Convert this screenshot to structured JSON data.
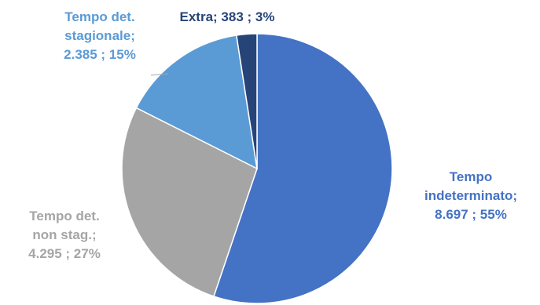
{
  "chart_data": {
    "type": "pie",
    "title": "",
    "slices": [
      {
        "lines": [
          "Tempo",
          "indeterminato;",
          "8.697 ; 55%"
        ],
        "value": 8697,
        "percent": 55,
        "color": "#4472C4"
      },
      {
        "lines": [
          "Tempo det.",
          "non stag.;",
          "4.295 ; 27%"
        ],
        "value": 4295,
        "percent": 27,
        "color": "#A5A5A5"
      },
      {
        "lines": [
          "Tempo  det.",
          "stagionale;",
          "2.385 ; 15%"
        ],
        "value": 2385,
        "percent": 15,
        "color": "#5B9BD5"
      },
      {
        "lines": [
          "Extra;  383 ; 3%"
        ],
        "value": 383,
        "percent": 3,
        "color": "#264478"
      }
    ]
  }
}
